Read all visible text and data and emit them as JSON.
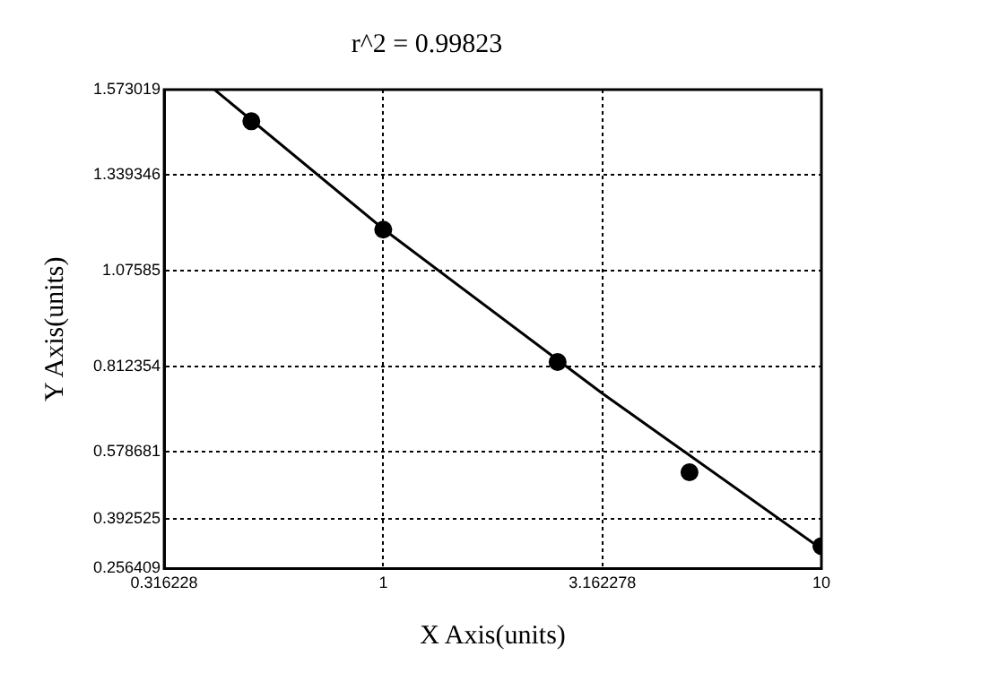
{
  "chart_data": {
    "type": "scatter",
    "title": "r^2 = 0.99823",
    "xlabel": "X Axis(units)",
    "ylabel": "Y Axis(units)",
    "log": "x",
    "grid": true,
    "legend": false,
    "marker": "circle",
    "xlim": [
      0.316228,
      10
    ],
    "xticks": [
      0.316228,
      1,
      3.162278,
      10
    ],
    "ylim": [
      0.256409,
      1.573019
    ],
    "yticks": [
      0.256409,
      0.392525,
      0.578681,
      0.812354,
      1.07585,
      1.339346,
      1.573019
    ],
    "series": [
      {
        "type": "scatter",
        "color": "#000000",
        "x": [
          0.5,
          1,
          2.5,
          5,
          10
        ],
        "values": [
          1.486,
          1.188,
          0.824,
          0.521,
          0.318
        ]
      },
      {
        "type": "line",
        "color": "#000000",
        "marker": "none",
        "x": [
          0.412,
          1,
          3.162278,
          10
        ],
        "values": [
          1.573,
          1.19,
          0.738,
          0.31
        ]
      }
    ]
  }
}
